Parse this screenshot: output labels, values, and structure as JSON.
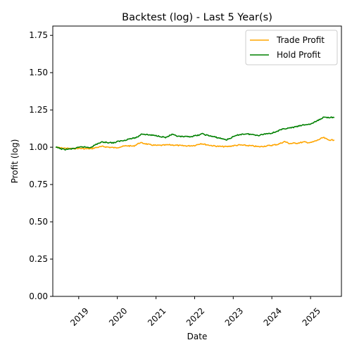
{
  "chart_data": {
    "type": "line",
    "title": "Backtest (log) - Last 5 Year(s)",
    "xlabel": "Date",
    "ylabel": "Profit (log)",
    "x_range": [
      "2018-05-01",
      "2025-10-20"
    ],
    "ylim": [
      0.0,
      1.8125
    ],
    "yticks": [
      "0.00",
      "0.25",
      "0.50",
      "0.75",
      "1.00",
      "1.25",
      "1.50",
      "1.75"
    ],
    "xticks": [
      {
        "label": "2019",
        "date": "2019-01-01"
      },
      {
        "label": "2020",
        "date": "2020-01-01"
      },
      {
        "label": "2021",
        "date": "2021-01-01"
      },
      {
        "label": "2022",
        "date": "2022-01-01"
      },
      {
        "label": "2023",
        "date": "2023-01-01"
      },
      {
        "label": "2024",
        "date": "2024-01-01"
      },
      {
        "label": "2025",
        "date": "2025-01-01"
      }
    ],
    "grid": false,
    "legend_position": "upper-right",
    "series": [
      {
        "name": "Trade Profit",
        "color": "#FFA500",
        "points": [
          [
            "2018-06-01",
            1.0
          ],
          [
            "2018-07-15",
            0.995
          ],
          [
            "2018-09-01",
            0.993
          ],
          [
            "2018-11-01",
            0.99
          ],
          [
            "2019-01-01",
            0.993
          ],
          [
            "2019-03-01",
            0.99
          ],
          [
            "2019-05-01",
            0.99
          ],
          [
            "2019-06-15",
            0.998
          ],
          [
            "2019-08-15",
            1.005
          ],
          [
            "2019-10-15",
            1.0
          ],
          [
            "2019-12-15",
            0.996
          ],
          [
            "2020-02-01",
            1.003
          ],
          [
            "2020-04-01",
            1.01
          ],
          [
            "2020-06-01",
            1.007
          ],
          [
            "2020-08-01",
            1.03
          ],
          [
            "2020-09-15",
            1.025
          ],
          [
            "2020-11-01",
            1.017
          ],
          [
            "2021-01-01",
            1.012
          ],
          [
            "2021-03-01",
            1.013
          ],
          [
            "2021-05-01",
            1.016
          ],
          [
            "2021-07-01",
            1.014
          ],
          [
            "2021-09-01",
            1.01
          ],
          [
            "2021-11-01",
            1.009
          ],
          [
            "2022-01-01",
            1.012
          ],
          [
            "2022-03-01",
            1.025
          ],
          [
            "2022-05-01",
            1.016
          ],
          [
            "2022-07-01",
            1.009
          ],
          [
            "2022-09-01",
            1.005
          ],
          [
            "2022-11-01",
            1.004
          ],
          [
            "2023-01-01",
            1.01
          ],
          [
            "2023-03-01",
            1.015
          ],
          [
            "2023-05-01",
            1.012
          ],
          [
            "2023-07-01",
            1.009
          ],
          [
            "2023-09-01",
            1.003
          ],
          [
            "2023-11-01",
            1.008
          ],
          [
            "2024-01-01",
            1.013
          ],
          [
            "2024-03-01",
            1.02
          ],
          [
            "2024-05-01",
            1.038
          ],
          [
            "2024-06-15",
            1.025
          ],
          [
            "2024-09-01",
            1.028
          ],
          [
            "2024-11-01",
            1.035
          ],
          [
            "2025-01-01",
            1.03
          ],
          [
            "2025-03-01",
            1.045
          ],
          [
            "2025-05-01",
            1.065
          ],
          [
            "2025-06-15",
            1.05
          ],
          [
            "2025-08-10",
            1.047
          ]
        ]
      },
      {
        "name": "Hold Profit",
        "color": "#008000",
        "points": [
          [
            "2018-06-01",
            1.0
          ],
          [
            "2018-07-15",
            0.99
          ],
          [
            "2018-08-15",
            0.985
          ],
          [
            "2018-10-15",
            0.988
          ],
          [
            "2018-12-15",
            0.995
          ],
          [
            "2019-02-01",
            1.003
          ],
          [
            "2019-04-15",
            0.998
          ],
          [
            "2019-05-15",
            1.007
          ],
          [
            "2019-07-01",
            1.025
          ],
          [
            "2019-08-15",
            1.035
          ],
          [
            "2019-10-01",
            1.032
          ],
          [
            "2019-12-01",
            1.03
          ],
          [
            "2020-01-15",
            1.04
          ],
          [
            "2020-03-01",
            1.045
          ],
          [
            "2020-04-15",
            1.055
          ],
          [
            "2020-06-01",
            1.06
          ],
          [
            "2020-07-15",
            1.07
          ],
          [
            "2020-08-15",
            1.09
          ],
          [
            "2020-10-01",
            1.085
          ],
          [
            "2020-12-01",
            1.08
          ],
          [
            "2021-02-01",
            1.075
          ],
          [
            "2021-04-01",
            1.065
          ],
          [
            "2021-06-01",
            1.085
          ],
          [
            "2021-08-01",
            1.072
          ],
          [
            "2021-10-01",
            1.07
          ],
          [
            "2021-12-01",
            1.072
          ],
          [
            "2022-02-01",
            1.08
          ],
          [
            "2022-03-15",
            1.09
          ],
          [
            "2022-05-01",
            1.08
          ],
          [
            "2022-07-01",
            1.07
          ],
          [
            "2022-09-01",
            1.06
          ],
          [
            "2022-11-01",
            1.05
          ],
          [
            "2023-01-01",
            1.07
          ],
          [
            "2023-03-01",
            1.085
          ],
          [
            "2023-05-01",
            1.09
          ],
          [
            "2023-07-01",
            1.085
          ],
          [
            "2023-09-01",
            1.08
          ],
          [
            "2023-11-01",
            1.09
          ],
          [
            "2024-01-01",
            1.095
          ],
          [
            "2024-03-01",
            1.11
          ],
          [
            "2024-05-01",
            1.125
          ],
          [
            "2024-07-01",
            1.13
          ],
          [
            "2024-09-01",
            1.14
          ],
          [
            "2024-11-01",
            1.15
          ],
          [
            "2025-01-01",
            1.155
          ],
          [
            "2025-03-01",
            1.175
          ],
          [
            "2025-05-01",
            1.2
          ],
          [
            "2025-06-15",
            1.2
          ],
          [
            "2025-08-10",
            1.2
          ]
        ]
      }
    ]
  }
}
